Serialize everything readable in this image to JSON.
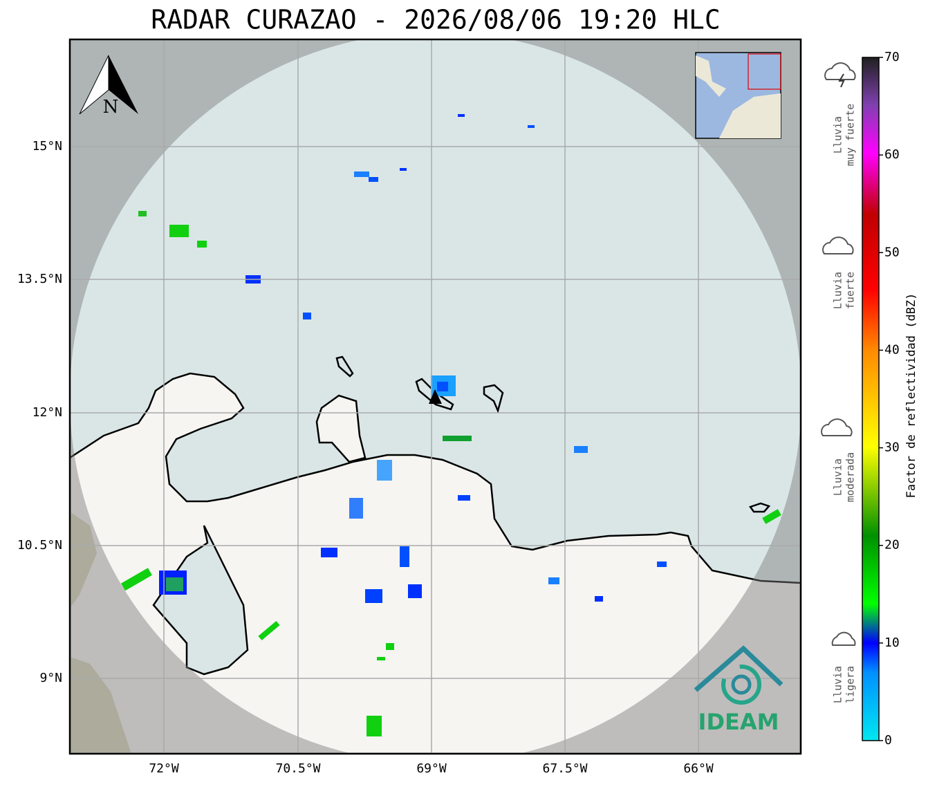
{
  "title": "RADAR CURAZAO - 2026/08/06 19:20 HLC",
  "map": {
    "north": "N",
    "lon_ticks": [
      "72°W",
      "70.5°W",
      "69°W",
      "67.5°W",
      "66°W"
    ],
    "lat_ticks": [
      "15°N",
      "13.5°N",
      "12°N",
      "10.5°N",
      "9°N"
    ],
    "logo": "IDEAM"
  },
  "colorbar": {
    "label": "Factor de reflectividad (dBZ)",
    "range": [
      0,
      70
    ],
    "ticks": [
      0,
      10,
      20,
      30,
      40,
      50,
      60,
      70
    ]
  },
  "legend": [
    {
      "lines": [
        "Lluvia",
        "muy fuerte"
      ]
    },
    {
      "lines": [
        "Lluvia",
        "fuerte"
      ]
    },
    {
      "lines": [
        "Lluvia",
        "moderada"
      ]
    },
    {
      "lines": [
        "Lluvia",
        "ligera"
      ]
    }
  ]
}
